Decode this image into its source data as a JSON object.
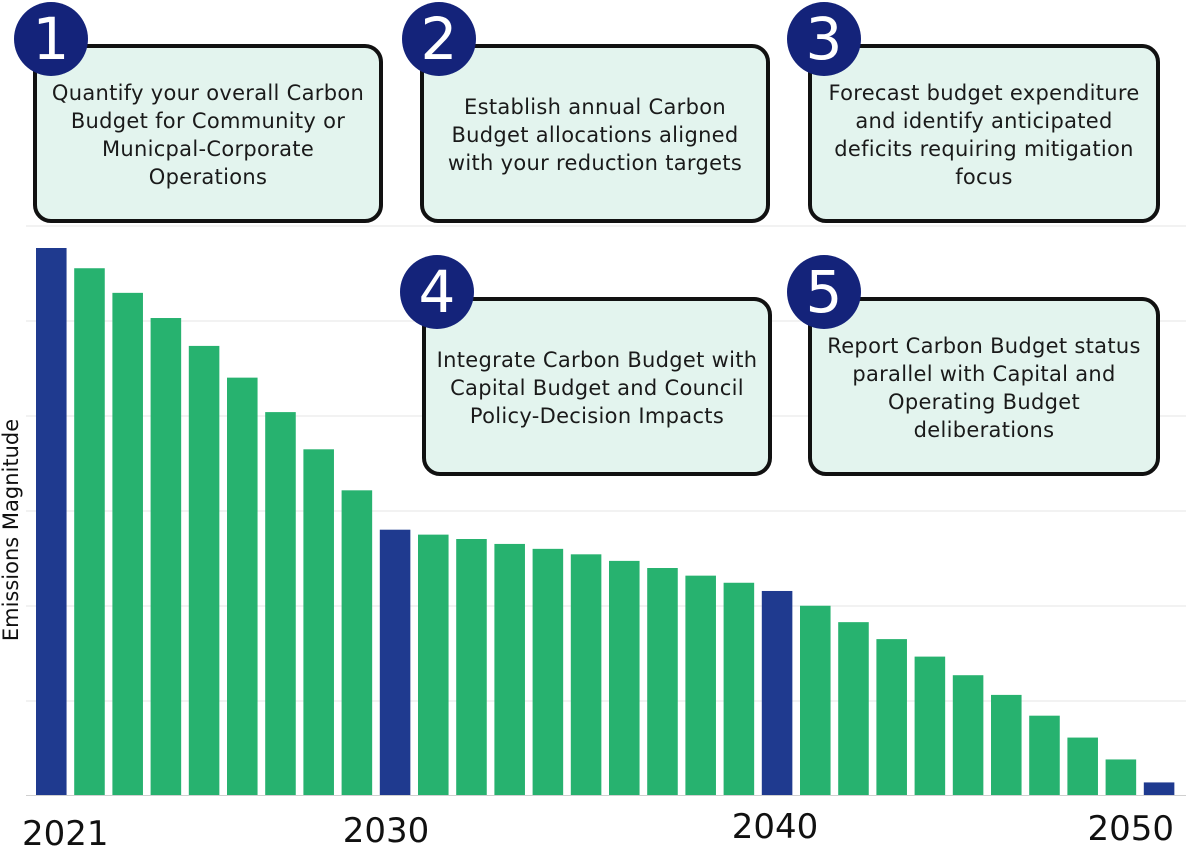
{
  "steps": [
    {
      "number": "1",
      "text": "Quantify your overall Carbon Budget for Community or Municpal-Corporate Operations"
    },
    {
      "number": "2",
      "text": "Establish annual Carbon Budget allocations aligned with your reduction targets"
    },
    {
      "number": "3",
      "text": "Forecast budget expenditure and identify anticipated deficits requiring mitigation focus"
    },
    {
      "number": "4",
      "text": "Integrate Carbon Budget with Capital Budget and Council Policy-Decision Impacts"
    },
    {
      "number": "5",
      "text": "Report Carbon Budget status parallel with Capital and Operating Budget deliberations"
    }
  ],
  "colors": {
    "highlight_bar": "#1f3a8f",
    "regular_bar": "#27b26f",
    "badge": "#14237a",
    "card_fill": "#e3f4ee",
    "card_border": "#111111",
    "gridline": "#e6e6e6"
  },
  "chart_data": {
    "type": "bar",
    "title": "",
    "xlabel": "",
    "ylabel": "Emissions Magnitude",
    "x_tick_labels": [
      "2021",
      "2030",
      "2040",
      "2050"
    ],
    "highlighted_years": [
      2021,
      2030,
      2040,
      2050
    ],
    "y_axis_values_shown": false,
    "grid": true,
    "ylim": [
      0,
      100
    ],
    "categories": [
      2021,
      2022,
      2023,
      2024,
      2025,
      2026,
      2027,
      2028,
      2029,
      2030,
      2031,
      2032,
      2033,
      2034,
      2035,
      2036,
      2037,
      2038,
      2039,
      2040,
      2041,
      2042,
      2043,
      2044,
      2045,
      2046,
      2047,
      2048,
      2049,
      2050
    ],
    "values": [
      100,
      96.3,
      91.8,
      87.2,
      82.1,
      76.3,
      70.0,
      63.2,
      55.7,
      48.5,
      47.6,
      46.8,
      45.9,
      45.0,
      44.0,
      42.8,
      41.5,
      40.1,
      38.8,
      37.3,
      34.6,
      31.6,
      28.5,
      25.3,
      21.9,
      18.3,
      14.5,
      10.5,
      6.5,
      2.3
    ]
  }
}
